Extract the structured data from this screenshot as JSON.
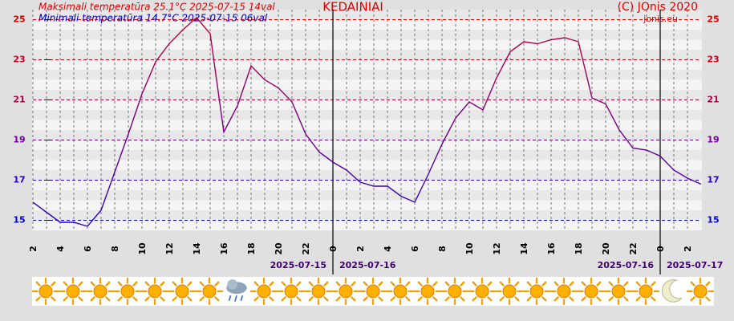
{
  "chart_data": {
    "type": "line",
    "title": "KEDAINIAI",
    "subtitle_max": "Maksimali temperatūra 25.1°C 2025-07-15 14val",
    "subtitle_min": "Minimali temperatūra 14.7°C 2025-07-15 06val",
    "copyright": "(C) JOnis 2020",
    "site": "jonis.eu",
    "x": [
      2,
      3,
      4,
      5,
      6,
      7,
      8,
      9,
      10,
      11,
      12,
      13,
      14,
      15,
      16,
      17,
      18,
      19,
      20,
      21,
      22,
      23,
      24,
      25,
      26,
      27,
      28,
      29,
      30,
      31,
      32,
      33,
      34,
      35,
      36,
      37,
      38,
      39,
      40,
      41,
      42,
      43,
      44,
      45,
      46,
      47,
      48,
      49,
      50,
      51
    ],
    "values": [
      15.9,
      15.4,
      14.9,
      14.9,
      14.7,
      15.5,
      17.4,
      19.3,
      21.3,
      22.9,
      23.8,
      24.5,
      25.1,
      24.3,
      19.4,
      20.7,
      22.7,
      22.0,
      21.6,
      20.9,
      19.3,
      18.4,
      17.9,
      17.5,
      16.9,
      16.7,
      16.7,
      16.2,
      15.9,
      17.3,
      18.8,
      20.1,
      20.9,
      20.5,
      22.1,
      23.4,
      23.9,
      23.8,
      24.0,
      24.1,
      23.9,
      21.1,
      20.8,
      19.5,
      18.6,
      18.5,
      18.2,
      17.5,
      17.1,
      16.8
    ],
    "line_colors": [
      "#cc0033",
      "#2200cc"
    ],
    "xlim": [
      2,
      51
    ],
    "xticks": [
      2,
      4,
      6,
      8,
      10,
      12,
      14,
      16,
      18,
      20,
      22,
      {
        "value": 24,
        "label": "0"
      },
      {
        "value": 26,
        "label": "2"
      },
      {
        "value": 28,
        "label": "4"
      },
      {
        "value": 30,
        "label": "6"
      },
      {
        "value": 32,
        "label": "8"
      },
      {
        "value": 34,
        "label": "10"
      },
      {
        "value": 36,
        "label": "12"
      },
      {
        "value": 38,
        "label": "14"
      },
      {
        "value": 40,
        "label": "16"
      },
      {
        "value": 42,
        "label": "18"
      },
      {
        "value": 44,
        "label": "20"
      },
      {
        "value": 46,
        "label": "22"
      },
      {
        "value": 48,
        "label": "0"
      },
      {
        "value": 50,
        "label": "2"
      }
    ],
    "ylim": [
      14.5,
      25.5
    ],
    "yticks": [
      15,
      17,
      19,
      21,
      23,
      25
    ],
    "ytick_colors": [
      "#0000cc",
      "#2a00c0",
      "#7000a0",
      "#b00040",
      "#cc0020",
      "#dd0000"
    ],
    "day_marks": [
      {
        "x": 24,
        "before": "2025-07-15",
        "after": "2025-07-16"
      },
      {
        "x": 48,
        "before": "2025-07-16",
        "after": "2025-07-17"
      }
    ],
    "grid": true
  }
}
